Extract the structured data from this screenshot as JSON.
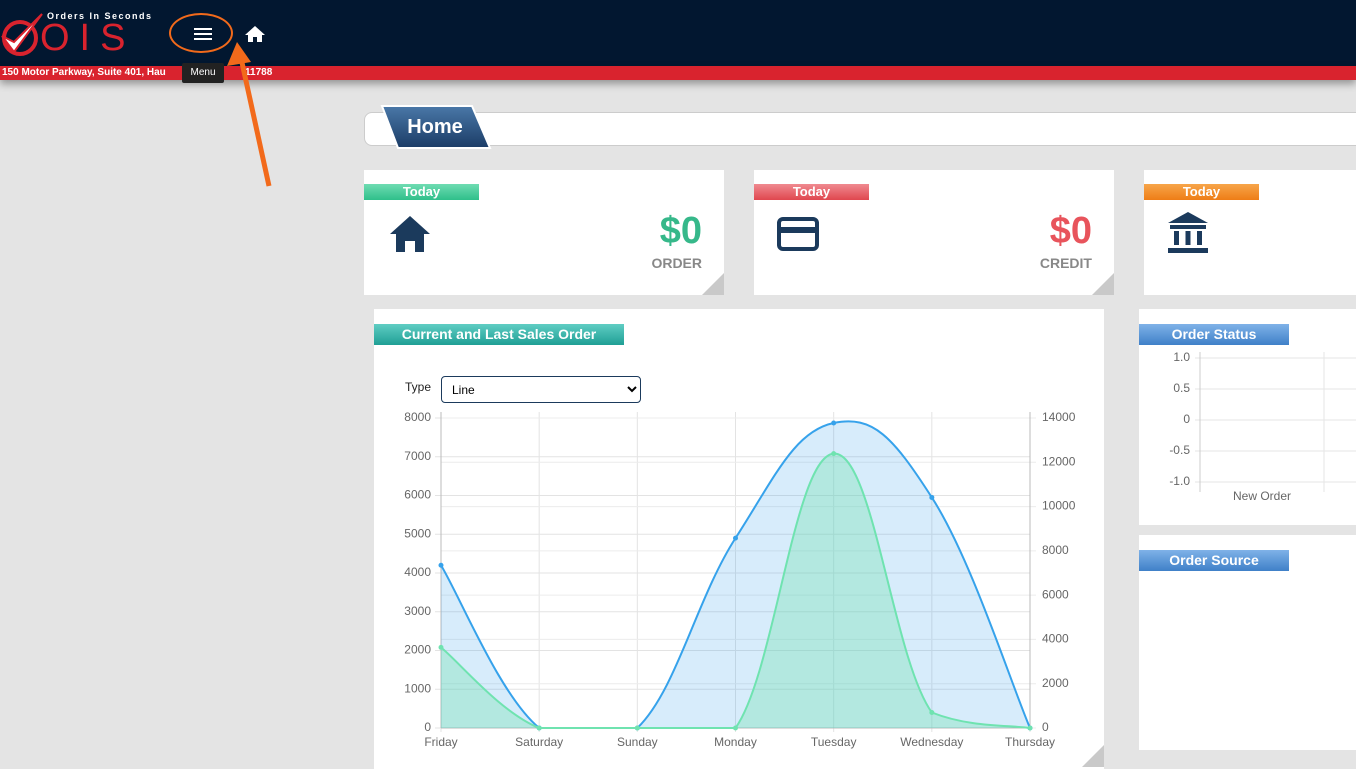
{
  "header": {
    "brand_small": "Orders In Seconds",
    "brand": "OIS",
    "address_start": "150 Motor Parkway, Suite 401, Hau",
    "address_end": "11788",
    "tooltip": "Menu"
  },
  "breadcrumb": {
    "title": "Home"
  },
  "cards": [
    {
      "label": "Today",
      "value": "$0",
      "caption": "ORDER"
    },
    {
      "label": "Today",
      "value": "$0",
      "caption": "CREDIT"
    },
    {
      "label": "Today"
    }
  ],
  "order_source": {
    "title": "Order Source"
  },
  "chart_data": [
    {
      "type": "line",
      "title": "Current and Last Sales Order",
      "control_label": "Type",
      "control_value": "Line",
      "categories": [
        "Friday",
        "Saturday",
        "Sunday",
        "Monday",
        "Tuesday",
        "Wednesday",
        "Thursday"
      ],
      "series": [
        {
          "color": "#36a2eb",
          "values": [
            4200,
            0,
            0,
            4900,
            7870,
            5950,
            0
          ]
        },
        {
          "color": "#6fe3b0",
          "axis": "y2",
          "values": [
            3640,
            0,
            0,
            0,
            12390,
            700,
            0
          ]
        }
      ],
      "ylim": [
        0,
        8000
      ],
      "yticks": [
        0,
        1000,
        2000,
        3000,
        4000,
        5000,
        6000,
        7000,
        8000
      ],
      "y2lim": [
        0,
        14000
      ],
      "y2ticks": [
        0,
        2000,
        4000,
        6000,
        8000,
        10000,
        12000,
        14000
      ],
      "grid": true
    },
    {
      "type": "bar",
      "title": "Order Status",
      "categories": [
        "New Order"
      ],
      "values": [
        0
      ],
      "color": "#2a9fd6",
      "ylim": [
        -1,
        1
      ],
      "yticks": [
        {
          "value": 1,
          "label": "1.0"
        },
        0.5,
        0,
        -0.5,
        {
          "value": -1,
          "label": "-1.0"
        }
      ],
      "grid": true
    }
  ]
}
